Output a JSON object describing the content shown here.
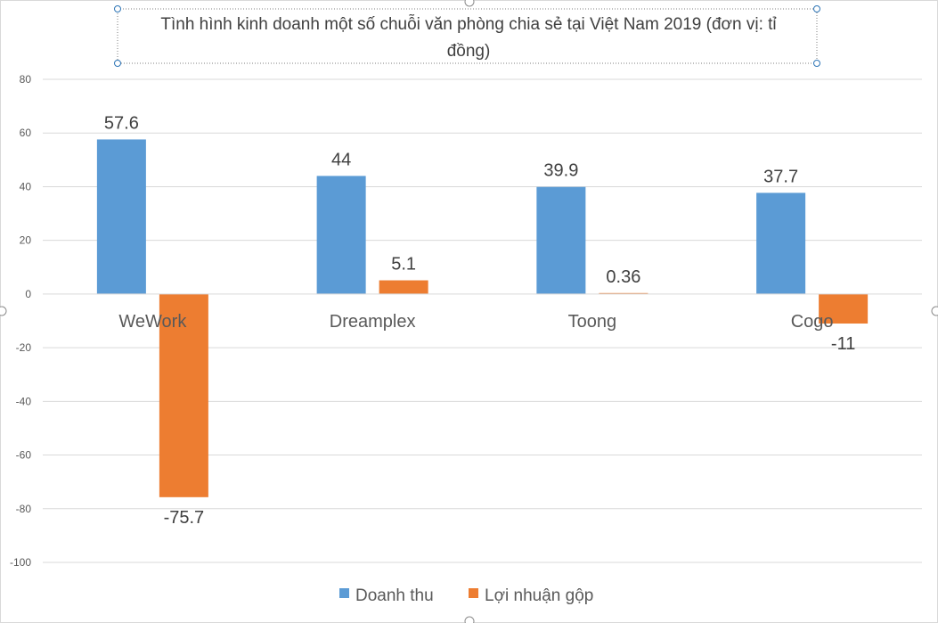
{
  "chart_data": {
    "type": "bar",
    "title": "Tình hình kinh doanh một số chuỗi văn phòng chia sẻ tại Việt Nam 2019 (đơn vị: tỉ đồng)",
    "title_lines": [
      "Tình hình kinh doanh một số chuỗi văn phòng chia sẻ tại Việt Nam 2019 (đơn vị: tỉ",
      "đồng)"
    ],
    "categories": [
      "WeWork",
      "Dreamplex",
      "Toong",
      "Cogo"
    ],
    "series": [
      {
        "name": "Doanh thu",
        "values": [
          57.6,
          44,
          39.9,
          37.7
        ],
        "labels": [
          "57.6",
          "44",
          "39.9",
          "37.7"
        ],
        "color": "#5B9BD5"
      },
      {
        "name": "Lợi nhuận gộp",
        "values": [
          -75.7,
          5.1,
          0.36,
          -11
        ],
        "labels": [
          "-75.7",
          "5.1",
          "0.36",
          "-11"
        ],
        "color": "#ED7D31"
      }
    ],
    "ylim": [
      -100,
      80
    ],
    "yticks": [
      "80",
      "60",
      "40",
      "20",
      "0",
      "-20",
      "-40",
      "-60",
      "-80",
      "-100"
    ],
    "ytick_values": [
      80,
      60,
      40,
      20,
      0,
      -20,
      -40,
      -60,
      -80,
      -100
    ],
    "grid": true,
    "legend": "bottom",
    "xlabel": "",
    "ylabel": ""
  }
}
